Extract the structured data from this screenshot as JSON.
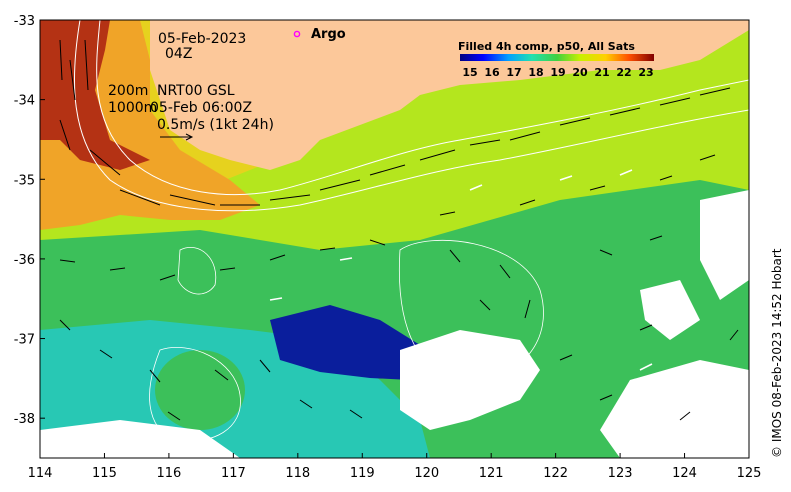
{
  "map": {
    "date_label": "05-Feb-2023",
    "time_label": "04Z",
    "argo_label": "Argo",
    "depth_line_1": "200m",
    "depth_line_2": "1000m",
    "product_label": "NRT00 GSL",
    "product_time": "05-Feb 06:00Z",
    "vector_scale_label": "0.5m/s (1kt 24h)",
    "colorbar_title": "Filled 4h comp, p50, All Sats",
    "colorbar_ticks": [
      "15",
      "16",
      "17",
      "18",
      "19",
      "20",
      "21",
      "22",
      "23"
    ],
    "x_ticks": [
      "114",
      "115",
      "116",
      "117",
      "118",
      "119",
      "120",
      "121",
      "122",
      "123",
      "124",
      "125"
    ],
    "y_ticks": [
      "-33",
      "-34",
      "-35",
      "-36",
      "-37",
      "-38"
    ],
    "credit": "© IMOS 08-Feb-2023 14:52 Hobart",
    "lon_range": [
      114,
      125
    ],
    "lat_range": [
      -38.5,
      -33
    ],
    "colors": {
      "land": "#fcc89a",
      "argo_marker": "#ff00ff",
      "no_data": "#ffffff"
    }
  }
}
